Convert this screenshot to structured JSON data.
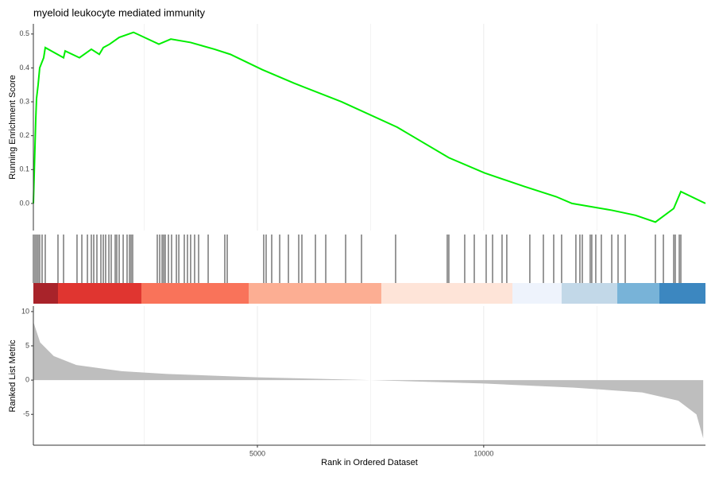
{
  "chart_data": [
    {
      "type": "line",
      "title": "myeloid leukocyte mediated immunity",
      "ylabel": "Running Enrichment Score",
      "color": "#00ee00",
      "x": [
        50,
        103,
        120,
        155,
        190,
        278,
        313,
        717,
        752,
        1068,
        1331,
        1507,
        1595,
        1735,
        1946,
        2262,
        2823,
        3087,
        3525,
        4052,
        4403,
        5105,
        5807,
        6861,
        8089,
        9230,
        10020,
        10898,
        11600,
        11951,
        12829,
        13355,
        13794,
        14198,
        14356,
        14900
      ],
      "values": [
        0,
        0.25,
        0.31,
        0.35,
        0.4,
        0.43,
        0.46,
        0.43,
        0.45,
        0.43,
        0.455,
        0.44,
        0.46,
        0.47,
        0.49,
        0.505,
        0.47,
        0.485,
        0.475,
        0.455,
        0.44,
        0.395,
        0.355,
        0.3,
        0.225,
        0.135,
        0.09,
        0.05,
        0.02,
        0,
        -0.02,
        -0.035,
        -0.055,
        -0.015,
        0.035,
        0
      ],
      "xlim": [
        50,
        14900
      ],
      "ylim": [
        -0.08,
        0.53
      ],
      "yticks": [
        {
          "value": 0,
          "label": "0.0"
        },
        0.1,
        0.2,
        0.3,
        0.4,
        0.5
      ],
      "grid_x": [
        2500,
        5000,
        7500,
        10000,
        12500
      ]
    },
    {
      "type": "rug",
      "color": "#000000",
      "x": [
        50,
        85,
        120,
        155,
        190,
        243,
        313,
        594,
        717,
        1015,
        1121,
        1244,
        1331,
        1384,
        1454,
        1542,
        1595,
        1647,
        1718,
        1770,
        1858,
        1893,
        1946,
        2034,
        2121,
        2174,
        2209,
        2244,
        2788,
        2841,
        2894,
        2929,
        2964,
        3034,
        3104,
        3210,
        3263,
        3385,
        3455,
        3525,
        3613,
        3701,
        3912,
        4280,
        4333,
        5140,
        5193,
        5316,
        5492,
        5685,
        5913,
        5983,
        6282,
        6510,
        6949,
        7300,
        8054,
        9195,
        9230,
        9581,
        9792,
        10055,
        10196,
        10406,
        10511,
        11020,
        11319,
        11547,
        11722,
        12038,
        12126,
        12179,
        12354,
        12389,
        12477,
        12600,
        12829,
        12969,
        13127,
        13794,
        13970,
        14198,
        14233,
        14321,
        14356
      ],
      "band_breaks": [
        50,
        594,
        2437,
        4807,
        7738,
        10635,
        11722,
        12951,
        13882,
        14900
      ],
      "band_colors": [
        "#a8232a",
        "#e03530",
        "#f9735a",
        "#fcae93",
        "#fee4d8",
        "#eef3fc",
        "#c2d8e8",
        "#78b3d8",
        "#3c87c0"
      ],
      "xlim": [
        50,
        14900
      ]
    },
    {
      "type": "area",
      "ylabel": "Ranked List Metric",
      "xlabel": "Rank in Ordered Dataset",
      "color": "#bebebe",
      "x": [
        50,
        200,
        500,
        1000,
        2000,
        3000,
        5000,
        7500,
        10000,
        12000,
        13500,
        14300,
        14700,
        14850
      ],
      "values": [
        8.5,
        5.5,
        3.5,
        2.2,
        1.3,
        0.9,
        0.4,
        0,
        -0.5,
        -1.1,
        -1.8,
        -3,
        -5,
        -8.5
      ],
      "xlim": [
        50,
        14900
      ],
      "ylim": [
        -9.5,
        10.8
      ],
      "yticks": [
        10,
        5,
        0,
        -5
      ],
      "xticks": [
        5000,
        10000
      ],
      "grid_x": [
        2500,
        5000,
        7500,
        10000,
        12500
      ]
    }
  ]
}
